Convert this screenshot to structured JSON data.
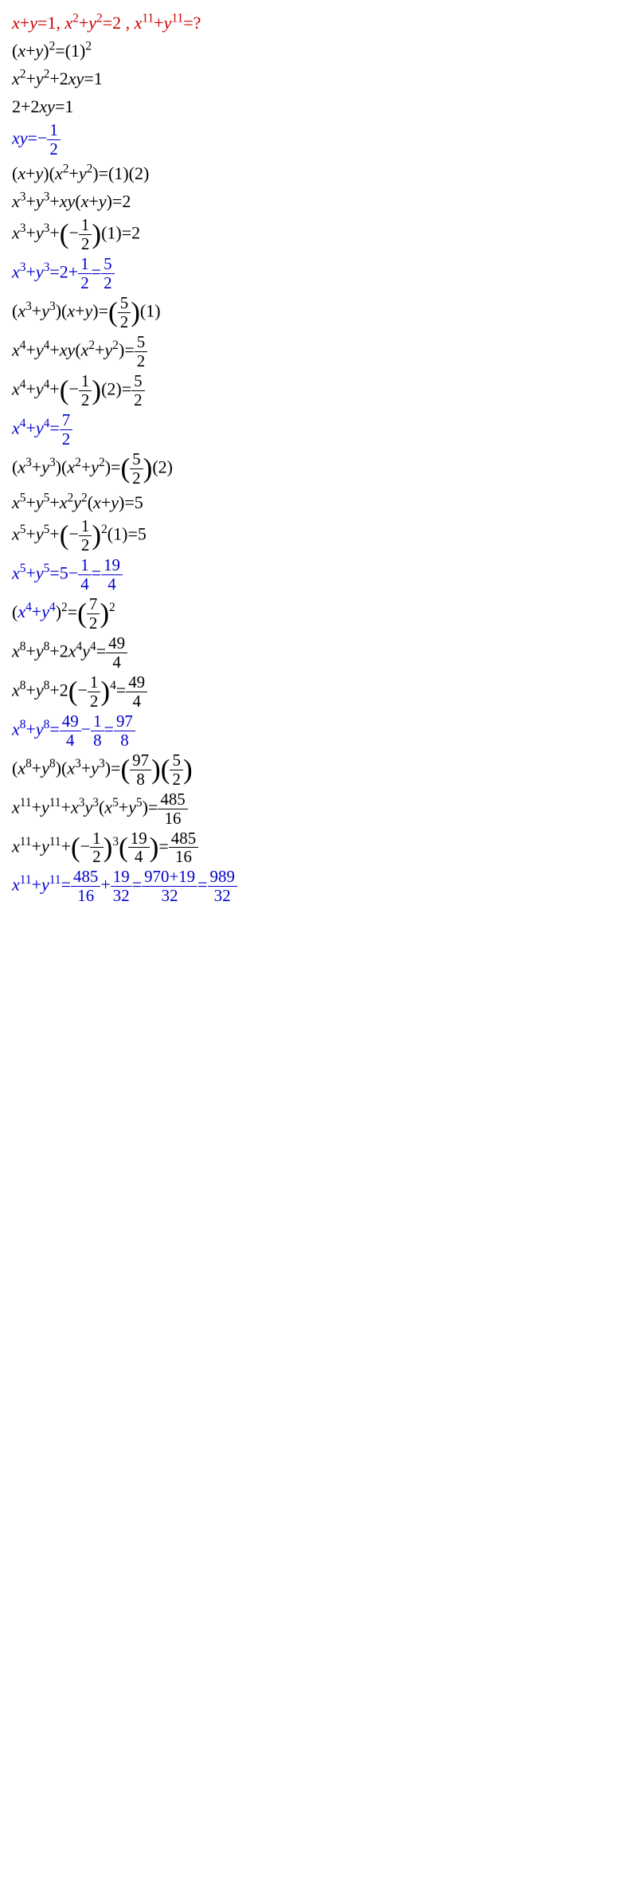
{
  "colors": {
    "red": "#cc0000",
    "blue": "#0000cc",
    "black": "#000000",
    "background": "#ffffff"
  },
  "typography": {
    "font_family": "Times New Roman",
    "base_fontsize": 22,
    "line_height": 1.5
  },
  "lines": [
    {
      "color": "red",
      "content": "x+y=1, x²+y²=2 , x¹¹+y¹¹=?"
    },
    {
      "color": "black",
      "content": "(x+y)²=(1)²"
    },
    {
      "color": "black",
      "content": "x²+y²+2xy=1"
    },
    {
      "color": "black",
      "content": "2+2xy=1"
    },
    {
      "color": "blue",
      "content": "xy=−1/2"
    },
    {
      "color": "black",
      "content": "(x+y)(x²+y²)=(1)(2)"
    },
    {
      "color": "black",
      "content": "x³+y³+xy(x+y)=2"
    },
    {
      "color": "black",
      "content": "x³+y³+(−1/2)(1)=2"
    },
    {
      "color": "blue",
      "content": "x³+y³=2+1/2=5/2"
    },
    {
      "color": "black",
      "content": "(x³+y³)(x+y)=(5/2)(1)"
    },
    {
      "color": "black",
      "content": "x⁴+y⁴+xy(x²+y²)=5/2"
    },
    {
      "color": "black",
      "content": "x⁴+y⁴+(−1/2)(2)=5/2"
    },
    {
      "color": "blue",
      "content": "x⁴+y⁴=7/2"
    },
    {
      "color": "black",
      "content": "(x³+y³)(x²+y²)=(5/2)(2)"
    },
    {
      "color": "black",
      "content": "x⁵+y⁵+x²y²(x+y)=5"
    },
    {
      "color": "black",
      "content": "x⁵+y⁵+(−1/2)²(1)=5"
    },
    {
      "color": "blue",
      "content": "x⁵+y⁵=5−1/4=19/4"
    },
    {
      "color": "black",
      "content": "(x⁴+y⁴)²=(7/2)²"
    },
    {
      "color": "black",
      "content": "x⁸+y⁸+2x⁴y⁴=49/4"
    },
    {
      "color": "black",
      "content": "x⁸+y⁸+2(−1/2)⁴=49/4"
    },
    {
      "color": "blue",
      "content": "x⁸+y⁸=49/4−1/8=97/8"
    },
    {
      "color": "black",
      "content": "(x⁸+y⁸)(x³+y³)=(97/8)(5/2)"
    },
    {
      "color": "black",
      "content": "x¹¹+y¹¹+x³y³(x⁵+y⁵)=485/16"
    },
    {
      "color": "black",
      "content": "x¹¹+y¹¹+(−1/2)³(19/4)=485/16"
    },
    {
      "color": "blue",
      "content": "x¹¹+y¹¹=485/16+19/32=(970+19)/32=989/32"
    }
  ]
}
